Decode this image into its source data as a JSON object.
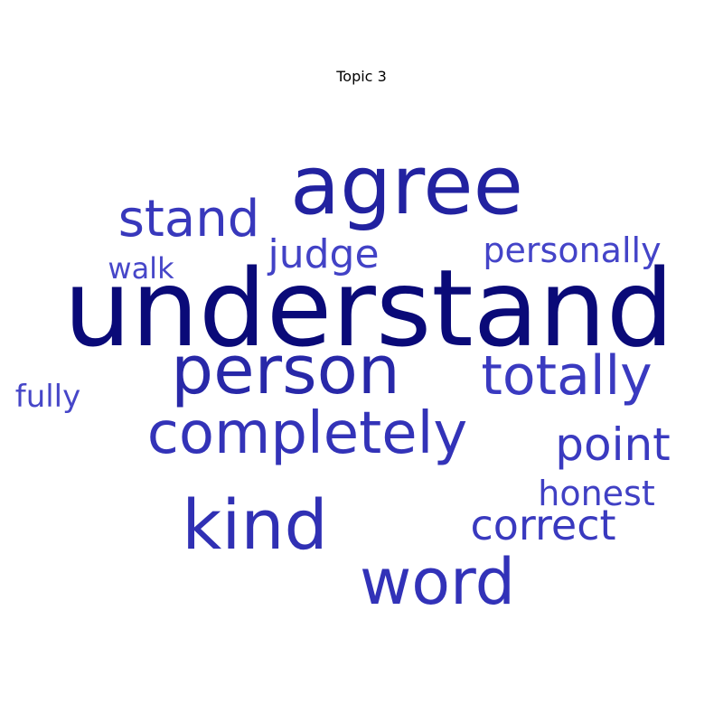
{
  "chart_data": {
    "type": "wordcloud",
    "title": "Topic 3",
    "words": [
      {
        "text": "understand",
        "weight": 1.0,
        "color": "#0a0a78"
      },
      {
        "text": "agree",
        "weight": 0.78,
        "color": "#2222a0"
      },
      {
        "text": "person",
        "weight": 0.66,
        "color": "#2828a8"
      },
      {
        "text": "kind",
        "weight": 0.64,
        "color": "#3030b4"
      },
      {
        "text": "word",
        "weight": 0.62,
        "color": "#3232b8"
      },
      {
        "text": "completely",
        "weight": 0.58,
        "color": "#3333b8"
      },
      {
        "text": "totally",
        "weight": 0.55,
        "color": "#3a3ac0"
      },
      {
        "text": "stand",
        "weight": 0.5,
        "color": "#3838bc"
      },
      {
        "text": "point",
        "weight": 0.45,
        "color": "#3a3ac0"
      },
      {
        "text": "correct",
        "weight": 0.43,
        "color": "#3939bf"
      },
      {
        "text": "judge",
        "weight": 0.4,
        "color": "#4242c6"
      },
      {
        "text": "honest",
        "weight": 0.36,
        "color": "#4040c4"
      },
      {
        "text": "personally",
        "weight": 0.35,
        "color": "#4444c8"
      },
      {
        "text": "fully",
        "weight": 0.31,
        "color": "#4646c8"
      },
      {
        "text": "walk",
        "weight": 0.3,
        "color": "#4747c9"
      }
    ]
  }
}
